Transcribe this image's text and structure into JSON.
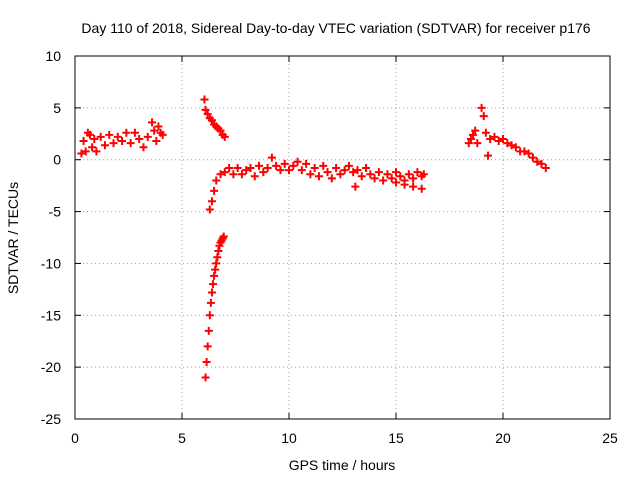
{
  "chart_data": {
    "type": "scatter",
    "title": "Day 110 of 2018, Sidereal Day-to-day VTEC variation (SDTVAR) for receiver p176",
    "xlabel": "GPS time / hours",
    "ylabel": "SDTVAR / TECUs",
    "xlim": [
      0,
      25
    ],
    "ylim": [
      -25,
      10
    ],
    "xticks": [
      "0",
      "5",
      "10",
      "15",
      "20",
      "25"
    ],
    "yticks": [
      "10",
      "5",
      "0",
      "-5",
      "-10",
      "-15",
      "-20",
      "-25"
    ],
    "grid": true,
    "marker": "plus",
    "series": [
      {
        "name": "SDTVAR",
        "color": "#ff0000",
        "x": [
          0.3,
          0.4,
          0.5,
          0.6,
          0.7,
          0.8,
          0.9,
          1.0,
          1.2,
          1.4,
          1.6,
          1.8,
          2.0,
          2.2,
          2.4,
          2.6,
          2.8,
          3.0,
          3.2,
          3.4,
          3.6,
          3.7,
          3.8,
          3.9,
          4.0,
          4.1,
          6.05,
          6.1,
          6.2,
          6.3,
          6.4,
          6.5,
          6.6,
          6.7,
          6.8,
          6.9,
          7.0,
          6.1,
          6.15,
          6.2,
          6.25,
          6.3,
          6.35,
          6.4,
          6.45,
          6.5,
          6.55,
          6.6,
          6.65,
          6.7,
          6.75,
          6.8,
          6.85,
          6.9,
          6.95,
          6.3,
          6.4,
          6.5,
          6.6,
          6.8,
          7.0,
          7.2,
          7.4,
          7.6,
          7.8,
          8.0,
          8.2,
          8.4,
          8.6,
          8.8,
          9.0,
          9.2,
          9.4,
          9.6,
          9.8,
          10.0,
          10.2,
          10.4,
          10.6,
          10.8,
          11.0,
          11.2,
          11.4,
          11.6,
          11.8,
          12.0,
          12.2,
          12.4,
          12.6,
          12.8,
          13.0,
          13.1,
          13.2,
          13.4,
          13.6,
          13.8,
          14.0,
          14.2,
          14.4,
          14.6,
          14.8,
          15.0,
          15.2,
          15.4,
          15.6,
          15.8,
          16.0,
          16.2,
          16.3,
          15.0,
          15.4,
          15.8,
          16.2,
          18.4,
          18.5,
          18.6,
          18.7,
          18.8,
          19.0,
          19.1,
          19.2,
          19.3,
          19.4,
          19.6,
          19.8,
          20.0,
          20.2,
          20.4,
          20.6,
          20.8,
          21.0,
          21.2,
          21.4,
          21.6,
          21.8,
          22.0
        ],
        "y": [
          0.6,
          1.8,
          0.8,
          2.6,
          2.4,
          1.2,
          2.0,
          0.8,
          2.2,
          1.4,
          2.4,
          1.6,
          2.2,
          1.8,
          2.6,
          1.6,
          2.6,
          2.0,
          1.2,
          2.2,
          3.6,
          2.8,
          1.8,
          3.2,
          2.6,
          2.4,
          5.8,
          4.8,
          4.4,
          4.0,
          3.8,
          3.4,
          3.2,
          3.0,
          2.8,
          2.4,
          2.2,
          -21.0,
          -19.5,
          -18.0,
          -16.5,
          -15.0,
          -13.8,
          -12.8,
          -12.0,
          -11.2,
          -10.6,
          -10.0,
          -9.4,
          -8.8,
          -8.3,
          -8.0,
          -7.8,
          -7.6,
          -7.4,
          -4.8,
          -4.0,
          -3.0,
          -2.0,
          -1.4,
          -1.2,
          -0.8,
          -1.4,
          -0.8,
          -1.4,
          -1.0,
          -0.8,
          -1.6,
          -0.6,
          -1.2,
          -0.8,
          0.2,
          -0.6,
          -1.0,
          -0.4,
          -1.0,
          -0.6,
          -0.2,
          -1.0,
          -0.4,
          -1.4,
          -0.8,
          -1.6,
          -0.6,
          -1.2,
          -1.8,
          -0.8,
          -1.4,
          -1.0,
          -0.6,
          -1.2,
          -2.6,
          -1.0,
          -1.6,
          -0.8,
          -1.4,
          -1.8,
          -1.2,
          -2.0,
          -1.4,
          -1.8,
          -1.2,
          -1.6,
          -2.0,
          -1.4,
          -1.8,
          -1.2,
          -1.6,
          -1.4,
          -2.2,
          -2.4,
          -2.6,
          -2.8,
          1.6,
          2.0,
          2.4,
          2.8,
          1.6,
          5.0,
          4.2,
          2.6,
          0.4,
          2.0,
          2.2,
          1.8,
          2.0,
          1.6,
          1.4,
          1.2,
          0.8,
          0.8,
          0.6,
          0.2,
          -0.2,
          -0.4,
          -0.8
        ]
      }
    ]
  }
}
